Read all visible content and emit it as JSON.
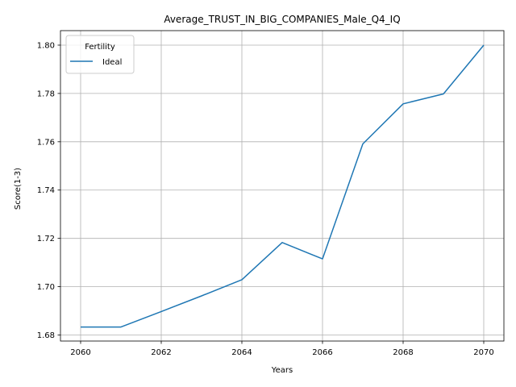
{
  "chart_data": {
    "type": "line",
    "title": "Average_TRUST_IN_BIG_COMPANIES_Male_Q4_IQ",
    "xlabel": "Years",
    "ylabel": "Score(1-3)",
    "xlim": [
      2059.5,
      2070.5
    ],
    "ylim": [
      1.6775,
      1.806
    ],
    "x_ticks": [
      2060,
      2062,
      2064,
      2066,
      2068,
      2070
    ],
    "x_tick_labels": [
      "2060",
      "2062",
      "2064",
      "2066",
      "2068",
      "2070"
    ],
    "y_ticks": [
      1.68,
      1.7,
      1.72,
      1.74,
      1.76,
      1.78,
      1.8
    ],
    "y_tick_labels": [
      "1.68",
      "1.70",
      "1.72",
      "1.74",
      "1.76",
      "1.78",
      "1.80"
    ],
    "grid": true,
    "legend": {
      "title": "Fertility",
      "position": "upper-left"
    },
    "series": [
      {
        "name": "Ideal",
        "color": "#1f77b4",
        "x": [
          2060,
          2061,
          2062,
          2063,
          2064,
          2065,
          2066,
          2067,
          2068,
          2069,
          2070
        ],
        "y": [
          1.6833,
          1.6833,
          1.6897,
          1.6962,
          1.7029,
          1.7183,
          1.7115,
          1.7591,
          1.7757,
          1.7798,
          1.8
        ]
      }
    ]
  }
}
